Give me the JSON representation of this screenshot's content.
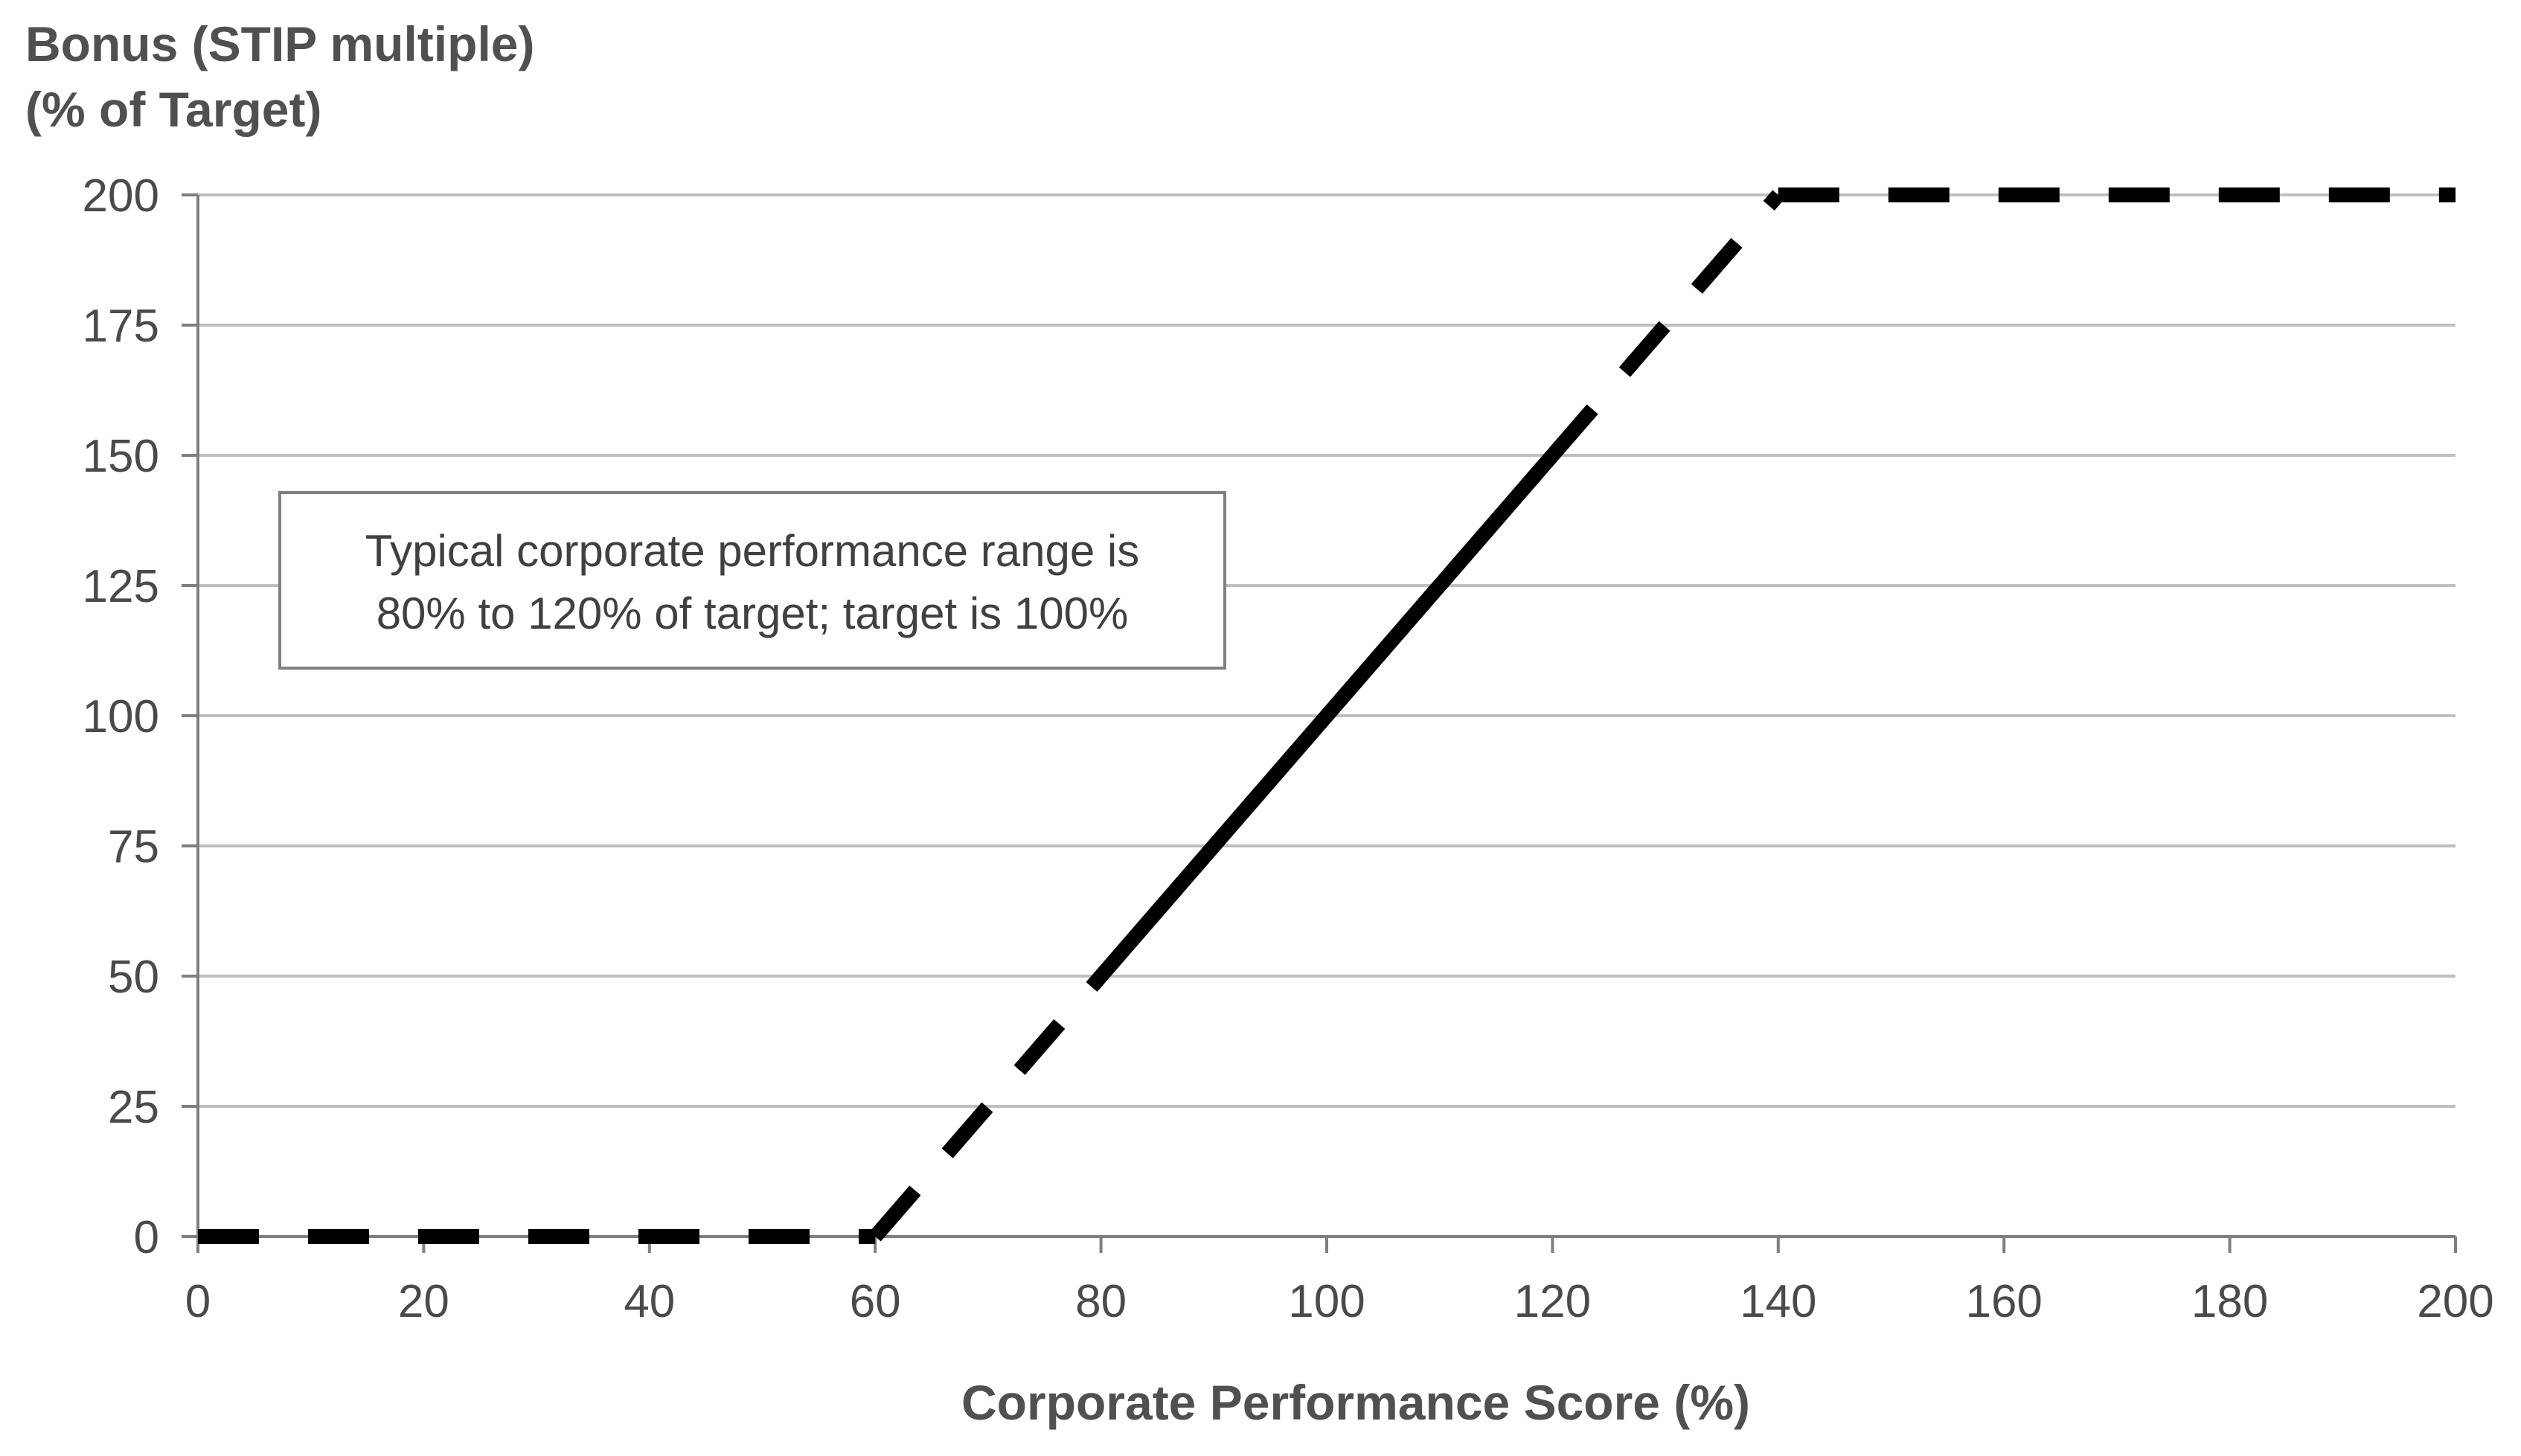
{
  "chart_data": {
    "type": "line",
    "ylabel_lines": [
      "Bonus (STIP multiple)",
      "(% of Target)"
    ],
    "xlabel": "Corporate Performance Score (%)",
    "xlim": [
      0,
      200
    ],
    "ylim": [
      0,
      200
    ],
    "x_ticks": [
      0,
      20,
      40,
      60,
      80,
      100,
      120,
      140,
      160,
      180,
      200
    ],
    "y_ticks": [
      0,
      25,
      50,
      75,
      100,
      125,
      150,
      175,
      200
    ],
    "grid": "horizontal",
    "segments": [
      {
        "style": "dashed",
        "x": [
          0,
          60
        ],
        "y": [
          0,
          0
        ]
      },
      {
        "style": "dashed",
        "x": [
          60,
          80
        ],
        "y": [
          0,
          50
        ]
      },
      {
        "style": "solid",
        "x": [
          80,
          120
        ],
        "y": [
          50,
          150
        ]
      },
      {
        "style": "dashed",
        "x": [
          120,
          140
        ],
        "y": [
          150,
          200
        ]
      },
      {
        "style": "dashed",
        "x": [
          140,
          200
        ],
        "y": [
          200,
          200
        ]
      }
    ],
    "annotation": {
      "lines": [
        "Typical corporate performance range is",
        "80% to 120% of target; target is 100%"
      ]
    },
    "colors": {
      "line": "#000000",
      "grid": "#bfbfbf",
      "axis": "#7f7f7f",
      "text": "#4a4a4a",
      "annotation_border": "#808080"
    }
  }
}
